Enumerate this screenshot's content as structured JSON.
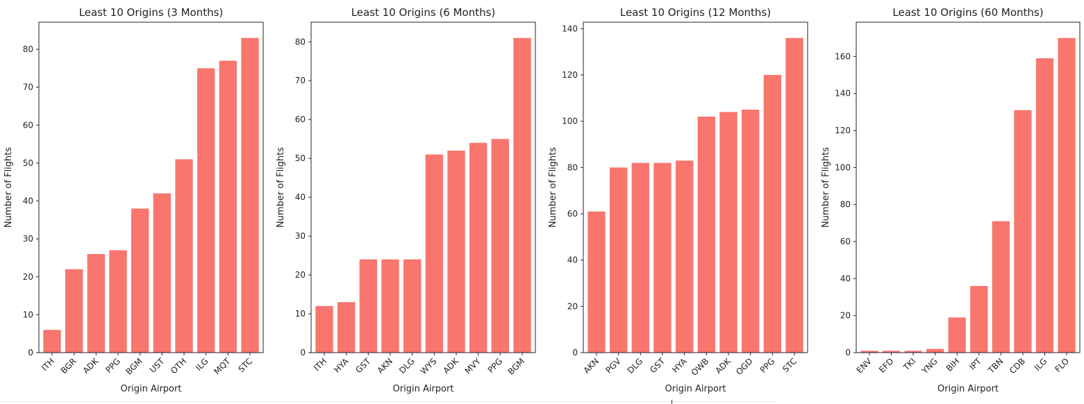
{
  "chart_data": [
    {
      "type": "bar",
      "title": "Least 10 Origins (3 Months)",
      "xlabel": "Origin Airport",
      "ylabel": "Number of Flights",
      "categories": [
        "ITH",
        "BGR",
        "ADK",
        "PPG",
        "BGM",
        "UST",
        "OTH",
        "ILG",
        "MQT",
        "STC"
      ],
      "values": [
        6,
        22,
        26,
        27,
        38,
        42,
        51,
        75,
        77,
        83
      ],
      "ylim": [
        0,
        87.15
      ],
      "yticks": [
        0,
        10,
        20,
        30,
        40,
        50,
        60,
        70,
        80
      ],
      "color": "#f8766d",
      "grid": false,
      "legend": "none"
    },
    {
      "type": "bar",
      "title": "Least 10 Origins (6 Months)",
      "xlabel": "Origin Airport",
      "ylabel": "Number of Flights",
      "categories": [
        "ITH",
        "HYA",
        "GST",
        "AKN",
        "DLG",
        "WYS",
        "ADK",
        "MVY",
        "PPG",
        "BGM"
      ],
      "values": [
        12,
        13,
        24,
        24,
        24,
        51,
        52,
        54,
        55,
        81
      ],
      "ylim": [
        0,
        85.05
      ],
      "yticks": [
        0,
        10,
        20,
        30,
        40,
        50,
        60,
        70,
        80
      ],
      "color": "#f8766d",
      "grid": false,
      "legend": "none"
    },
    {
      "type": "bar",
      "title": "Least 10 Origins (12 Months)",
      "xlabel": "Origin Airport",
      "ylabel": "Number of Flights",
      "categories": [
        "AKN",
        "PGV",
        "DLG",
        "GST",
        "HYA",
        "OWB",
        "ADK",
        "OGD",
        "PPG",
        "STC"
      ],
      "values": [
        61,
        80,
        82,
        82,
        83,
        102,
        104,
        105,
        120,
        136
      ],
      "ylim": [
        0,
        142.8
      ],
      "yticks": [
        0,
        20,
        40,
        60,
        80,
        100,
        120,
        140
      ],
      "color": "#f8766d",
      "grid": false,
      "legend": "none"
    },
    {
      "type": "bar",
      "title": "Least 10 Origins (60 Months)",
      "xlabel": "Origin Airport",
      "ylabel": "Number of Flights",
      "categories": [
        "ENV",
        "EFD",
        "TKI",
        "YNG",
        "BIH",
        "IPT",
        "TBN",
        "CDB",
        "ILG",
        "FLO"
      ],
      "values": [
        1,
        1,
        1,
        2,
        19,
        36,
        71,
        131,
        159,
        170
      ],
      "ylim": [
        0,
        178.5
      ],
      "yticks": [
        0,
        20,
        40,
        60,
        80,
        100,
        120,
        140,
        160
      ],
      "color": "#f8766d",
      "grid": false,
      "legend": "none"
    }
  ]
}
